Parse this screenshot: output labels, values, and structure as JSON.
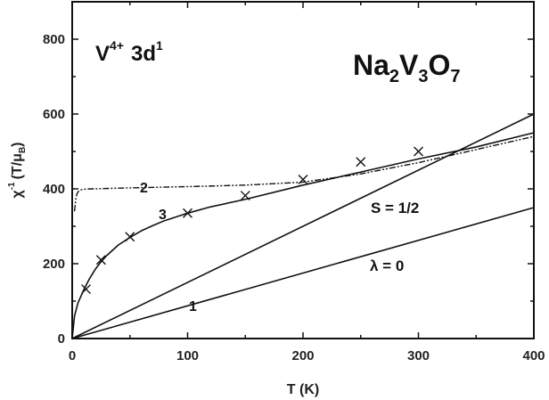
{
  "chart_data": {
    "type": "line",
    "title": "",
    "xlabel": "T (K)",
    "ylabel_main": "χ",
    "ylabel_sup": "-1",
    "ylabel_unit": "(T/μ",
    "ylabel_unit_sub": "B",
    "ylabel_close": ")",
    "xlim": [
      0,
      400
    ],
    "ylim": [
      0,
      900
    ],
    "xticks": [
      0,
      100,
      200,
      300,
      400
    ],
    "yticks": [
      0,
      200,
      400,
      600,
      800
    ],
    "grid": false,
    "legend": "none",
    "annotations": {
      "ion_main": "V",
      "ion_sup": "4+",
      "ion_config": "3d",
      "ion_config_sup": "1",
      "compound_parts": [
        "Na",
        "2",
        "V",
        "3",
        "O",
        "7"
      ],
      "s_label": "S = 1/2",
      "lambda_label": "λ = 0",
      "curve1_label": "1",
      "curve2_label": "2",
      "curve3_label": "3"
    },
    "series": [
      {
        "id": "line-s-half",
        "style": "solid",
        "x": [
          0,
          400
        ],
        "y": [
          0,
          600
        ]
      },
      {
        "id": "line-lambda-zero",
        "style": "solid",
        "x": [
          0,
          400
        ],
        "y": [
          0,
          350
        ]
      },
      {
        "id": "curve-3",
        "style": "solid",
        "x": [
          0,
          2,
          5,
          10,
          15,
          20,
          25,
          30,
          40,
          50,
          60,
          70,
          80,
          100,
          120,
          150,
          200,
          250,
          300,
          350,
          400
        ],
        "y": [
          0,
          60,
          95,
          130,
          160,
          185,
          205,
          222,
          250,
          270,
          288,
          302,
          315,
          335,
          352,
          372,
          410,
          445,
          480,
          512,
          550
        ]
      },
      {
        "id": "curve-2",
        "style": "dashdot",
        "x": [
          2,
          3,
          4,
          5,
          7,
          10,
          15,
          20,
          40,
          100,
          150,
          200,
          250,
          300,
          350,
          400
        ],
        "y": [
          340,
          370,
          385,
          392,
          397,
          399,
          400,
          400,
          402,
          406,
          410,
          418,
          440,
          470,
          505,
          540
        ]
      },
      {
        "id": "data-points",
        "style": "markers",
        "marker": "x",
        "x": [
          12,
          25,
          50,
          100,
          150,
          200,
          250,
          300
        ],
        "y": [
          132,
          210,
          272,
          335,
          382,
          425,
          472,
          500
        ]
      }
    ]
  }
}
